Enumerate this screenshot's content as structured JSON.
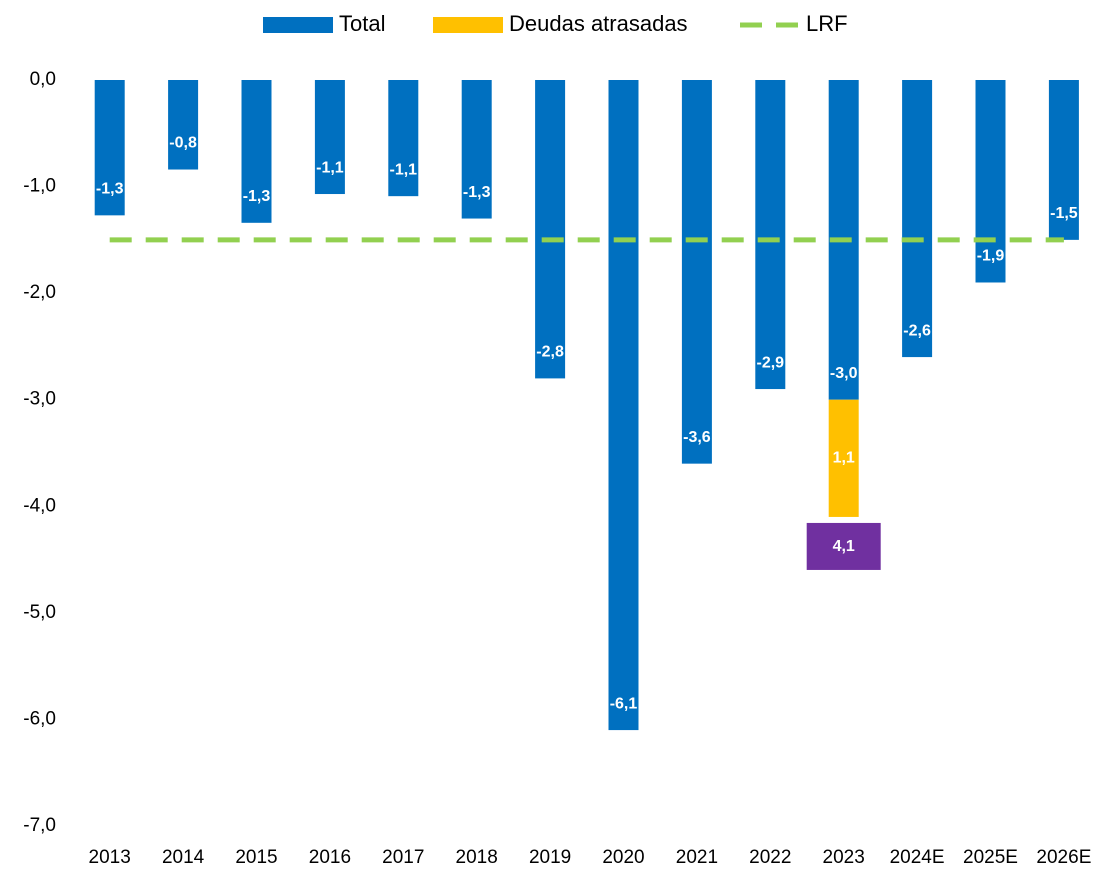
{
  "chart_data": {
    "type": "bar",
    "categories": [
      "2013",
      "2014",
      "2015",
      "2016",
      "2017",
      "2018",
      "2019",
      "2020",
      "2021",
      "2022",
      "2023",
      "2024E",
      "2025E",
      "2026E"
    ],
    "series": [
      {
        "name": "Total",
        "color": "#0070c0",
        "values": [
          -1.27,
          -0.84,
          -1.34,
          -1.07,
          -1.09,
          -1.3,
          -2.8,
          -6.1,
          -3.6,
          -2.9,
          -3.0,
          -2.6,
          -1.9,
          -1.5
        ],
        "value_labels": [
          "-1,3",
          "-0,8",
          "-1,3",
          "-1,1",
          "-1,1",
          "-1,3",
          "-2,8",
          "-6,1",
          "-3,6",
          "-2,9",
          "-3,0",
          "-2,6",
          "-1,9",
          "-1,5"
        ]
      },
      {
        "name": "Deudas atrasadas",
        "color": "#ffc000",
        "values": [
          null,
          null,
          null,
          null,
          null,
          null,
          null,
          null,
          null,
          null,
          1.1,
          null,
          null,
          null
        ],
        "value_labels": [
          null,
          null,
          null,
          null,
          null,
          null,
          null,
          null,
          null,
          null,
          "1,1",
          null,
          null,
          null
        ]
      },
      {
        "name": "LRF",
        "color": "#92d050",
        "type": "line",
        "dashed": true,
        "values": [
          -1.5,
          -1.5,
          -1.5,
          -1.5,
          -1.5,
          -1.5,
          -1.5,
          -1.5,
          -1.5,
          -1.5,
          -1.5,
          -1.5,
          -1.5,
          -1.5
        ]
      }
    ],
    "annotations": [
      {
        "text": "4,1",
        "color": "#7030a0",
        "category_index": 10
      }
    ],
    "ylim": [
      -7,
      0
    ],
    "yticks": [
      {
        "value": 0,
        "label": "0,0"
      },
      {
        "value": -1,
        "label": "-1,0"
      },
      {
        "value": -2,
        "label": "-2,0"
      },
      {
        "value": -3,
        "label": "-3,0"
      },
      {
        "value": -4,
        "label": "-4,0"
      },
      {
        "value": -5,
        "label": "-5,0"
      },
      {
        "value": -6,
        "label": "-6,0"
      },
      {
        "value": -7,
        "label": "-7,0"
      }
    ],
    "grid": false,
    "legend": "top"
  }
}
